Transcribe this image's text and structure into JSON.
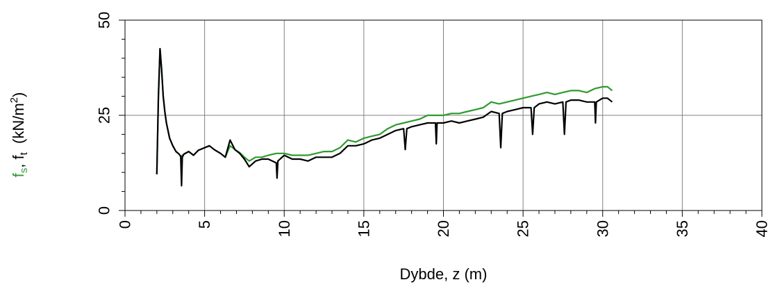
{
  "chart_data": {
    "type": "line",
    "title": "",
    "xlabel": "Dybde, z (m)",
    "ylabel": {
      "fs_main": "f",
      "fs_sub": "s",
      "sep": ", ",
      "ft_main": "f",
      "ft_sub": "t",
      "unit_pre": "  (kN/m",
      "unit_sup": "2",
      "unit_post": ")"
    },
    "xlim": [
      0,
      40
    ],
    "ylim": [
      0,
      50
    ],
    "xticks": [
      0,
      5,
      10,
      15,
      20,
      25,
      30,
      35,
      40
    ],
    "xtick_labels": [
      "0",
      "5",
      "10",
      "15",
      "20",
      "25",
      "30",
      "35",
      "40"
    ],
    "yticks": [
      0,
      25,
      50
    ],
    "ytick_labels": [
      "0",
      "25",
      "50"
    ],
    "grid": true,
    "legend": "none",
    "colors": {
      "fs": "#2e9a2e",
      "ft": "#000000",
      "grid": "#808080"
    },
    "series": [
      {
        "key": "fs",
        "values": [
          [
            2.0,
            9.5
          ],
          [
            2.1,
            30.0
          ],
          [
            2.2,
            42.5
          ],
          [
            2.3,
            37.0
          ],
          [
            2.4,
            30.0
          ],
          [
            2.5,
            26.0
          ],
          [
            2.6,
            23.0
          ],
          [
            2.7,
            21.0
          ],
          [
            2.8,
            19.0
          ],
          [
            3.0,
            17.0
          ],
          [
            3.2,
            15.5
          ],
          [
            3.4,
            14.8
          ],
          [
            3.5,
            14.2
          ],
          [
            3.7,
            14.8
          ],
          [
            4.0,
            15.5
          ],
          [
            4.3,
            14.5
          ],
          [
            4.6,
            15.8
          ],
          [
            5.0,
            16.5
          ],
          [
            5.3,
            17.0
          ],
          [
            5.6,
            16.0
          ],
          [
            6.0,
            15.0
          ],
          [
            6.3,
            14.0
          ],
          [
            6.6,
            17.0
          ],
          [
            6.9,
            16.0
          ],
          [
            7.2,
            15.2
          ],
          [
            7.5,
            14.0
          ],
          [
            7.8,
            13.0
          ],
          [
            8.2,
            14.0
          ],
          [
            8.6,
            14.0
          ],
          [
            9.0,
            14.5
          ],
          [
            9.5,
            15.0
          ],
          [
            10.0,
            15.0
          ],
          [
            10.5,
            14.5
          ],
          [
            11.0,
            14.5
          ],
          [
            11.5,
            14.5
          ],
          [
            12.0,
            15.0
          ],
          [
            12.5,
            15.5
          ],
          [
            13.0,
            15.5
          ],
          [
            13.5,
            16.5
          ],
          [
            14.0,
            18.5
          ],
          [
            14.5,
            18.0
          ],
          [
            15.0,
            19.0
          ],
          [
            15.5,
            19.5
          ],
          [
            16.0,
            20.0
          ],
          [
            16.5,
            21.5
          ],
          [
            17.0,
            22.5
          ],
          [
            17.5,
            23.0
          ],
          [
            18.0,
            23.5
          ],
          [
            18.5,
            24.0
          ],
          [
            19.0,
            25.0
          ],
          [
            19.5,
            25.0
          ],
          [
            20.0,
            25.0
          ],
          [
            20.5,
            25.5
          ],
          [
            21.0,
            25.5
          ],
          [
            21.5,
            26.0
          ],
          [
            22.0,
            26.5
          ],
          [
            22.5,
            27.0
          ],
          [
            23.0,
            28.5
          ],
          [
            23.5,
            28.0
          ],
          [
            24.0,
            28.5
          ],
          [
            24.5,
            29.0
          ],
          [
            25.0,
            29.5
          ],
          [
            25.5,
            30.0
          ],
          [
            26.0,
            30.5
          ],
          [
            26.5,
            31.0
          ],
          [
            27.0,
            30.5
          ],
          [
            27.5,
            31.0
          ],
          [
            28.0,
            31.5
          ],
          [
            28.5,
            31.5
          ],
          [
            29.0,
            31.0
          ],
          [
            29.5,
            32.0
          ],
          [
            30.0,
            32.5
          ],
          [
            30.3,
            32.5
          ],
          [
            30.6,
            31.5
          ]
        ]
      },
      {
        "key": "ft",
        "values": [
          [
            2.0,
            9.5
          ],
          [
            2.1,
            30.0
          ],
          [
            2.2,
            42.5
          ],
          [
            2.3,
            37.0
          ],
          [
            2.4,
            30.0
          ],
          [
            2.5,
            26.0
          ],
          [
            2.6,
            23.0
          ],
          [
            2.7,
            21.0
          ],
          [
            2.8,
            19.0
          ],
          [
            3.0,
            17.0
          ],
          [
            3.2,
            15.5
          ],
          [
            3.4,
            14.8
          ],
          [
            3.5,
            14.2
          ],
          [
            3.55,
            6.5
          ],
          [
            3.6,
            14.0
          ],
          [
            3.7,
            14.8
          ],
          [
            4.0,
            15.5
          ],
          [
            4.3,
            14.5
          ],
          [
            4.6,
            15.8
          ],
          [
            5.0,
            16.5
          ],
          [
            5.3,
            17.0
          ],
          [
            5.6,
            16.0
          ],
          [
            6.0,
            15.0
          ],
          [
            6.3,
            14.0
          ],
          [
            6.6,
            18.5
          ],
          [
            6.9,
            16.0
          ],
          [
            7.2,
            15.0
          ],
          [
            7.5,
            13.5
          ],
          [
            7.8,
            11.5
          ],
          [
            8.2,
            13.0
          ],
          [
            8.6,
            13.5
          ],
          [
            9.0,
            13.5
          ],
          [
            9.5,
            12.5
          ],
          [
            9.55,
            8.5
          ],
          [
            9.6,
            13.0
          ],
          [
            10.0,
            14.5
          ],
          [
            10.5,
            13.5
          ],
          [
            11.0,
            13.5
          ],
          [
            11.5,
            13.0
          ],
          [
            12.0,
            14.0
          ],
          [
            12.5,
            14.0
          ],
          [
            13.0,
            14.0
          ],
          [
            13.5,
            15.0
          ],
          [
            14.0,
            17.0
          ],
          [
            14.5,
            17.0
          ],
          [
            15.0,
            17.5
          ],
          [
            15.5,
            18.5
          ],
          [
            16.0,
            19.0
          ],
          [
            16.5,
            20.0
          ],
          [
            17.0,
            21.0
          ],
          [
            17.5,
            21.5
          ],
          [
            17.6,
            16.0
          ],
          [
            17.7,
            21.5
          ],
          [
            18.0,
            22.0
          ],
          [
            18.5,
            22.5
          ],
          [
            19.0,
            23.0
          ],
          [
            19.5,
            23.0
          ],
          [
            19.55,
            17.5
          ],
          [
            19.6,
            23.0
          ],
          [
            20.0,
            23.0
          ],
          [
            20.5,
            23.5
          ],
          [
            21.0,
            23.0
          ],
          [
            21.5,
            23.5
          ],
          [
            22.0,
            24.0
          ],
          [
            22.5,
            24.5
          ],
          [
            23.0,
            26.0
          ],
          [
            23.5,
            25.5
          ],
          [
            23.6,
            16.5
          ],
          [
            23.7,
            25.5
          ],
          [
            24.0,
            26.0
          ],
          [
            24.5,
            26.5
          ],
          [
            25.0,
            27.0
          ],
          [
            25.5,
            27.0
          ],
          [
            25.6,
            20.0
          ],
          [
            25.7,
            27.0
          ],
          [
            26.0,
            28.0
          ],
          [
            26.5,
            28.5
          ],
          [
            27.0,
            28.0
          ],
          [
            27.5,
            28.5
          ],
          [
            27.6,
            20.0
          ],
          [
            27.7,
            28.5
          ],
          [
            28.0,
            29.0
          ],
          [
            28.5,
            29.0
          ],
          [
            29.0,
            28.5
          ],
          [
            29.5,
            28.5
          ],
          [
            29.55,
            23.0
          ],
          [
            29.6,
            28.5
          ],
          [
            30.0,
            29.5
          ],
          [
            30.3,
            29.5
          ],
          [
            30.6,
            28.5
          ]
        ]
      }
    ]
  }
}
